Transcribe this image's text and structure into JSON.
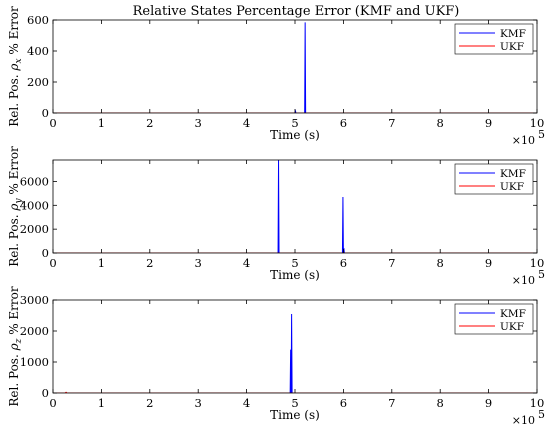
{
  "figure": {
    "title": "Relative States Percentage Error (KMF and UKF)"
  },
  "colors": {
    "kmf": "#0000ff",
    "ukf": "#ff0000",
    "axes": "#000000",
    "background": "#ffffff"
  },
  "chart_data": [
    {
      "type": "line",
      "ylabel_prefix": "Rel. Pos. ",
      "ylabel_sym": "ρ",
      "ylabel_sub": "x",
      "ylabel_suffix": " % Error",
      "xlabel": "Time (s)",
      "xlim": [
        0,
        10
      ],
      "ylim": [
        0,
        600
      ],
      "xticks": [
        "0",
        "1",
        "2",
        "3",
        "4",
        "5",
        "6",
        "7",
        "8",
        "9",
        "10"
      ],
      "yticks": [
        "0",
        "200",
        "400",
        "600"
      ],
      "x_multiplier_base": "×10",
      "x_multiplier_exp": "5",
      "legend_position": "top-right",
      "series": [
        {
          "name": "KMF",
          "color": "#0000ff",
          "x": [
            0,
            5.0,
            5.01,
            5.02,
            5.2,
            5.21,
            5.22,
            10
          ],
          "y": [
            0,
            0,
            12,
            0,
            0,
            585,
            0,
            0
          ]
        },
        {
          "name": "UKF",
          "color": "#ff0000",
          "x": [
            0,
            10
          ],
          "y": [
            0,
            0
          ]
        }
      ]
    },
    {
      "type": "line",
      "ylabel_prefix": "Rel. Pos. ",
      "ylabel_sym": "ρ",
      "ylabel_sub": "y",
      "ylabel_suffix": " % Error",
      "xlabel": "Time (s)",
      "xlim": [
        0,
        10
      ],
      "ylim": [
        0,
        7800
      ],
      "xticks": [
        "0",
        "1",
        "2",
        "3",
        "4",
        "5",
        "6",
        "7",
        "8",
        "9",
        "10"
      ],
      "yticks": [
        "0",
        "2000",
        "4000",
        "6000"
      ],
      "x_multiplier_base": "×10",
      "x_multiplier_exp": "5",
      "legend_position": "top-right",
      "series": [
        {
          "name": "KMF",
          "color": "#0000ff",
          "x": [
            0,
            4.65,
            4.66,
            4.67,
            5.98,
            5.99,
            6.0,
            6.01,
            6.02,
            10
          ],
          "y": [
            0,
            0,
            7800,
            0,
            0,
            4700,
            0,
            400,
            0,
            0
          ]
        },
        {
          "name": "UKF",
          "color": "#ff0000",
          "x": [
            0,
            10
          ],
          "y": [
            0,
            0
          ]
        }
      ]
    },
    {
      "type": "line",
      "ylabel_prefix": "Rel. Pos. ",
      "ylabel_sym": "ρ",
      "ylabel_sub": "z",
      "ylabel_suffix": " % Error",
      "xlabel": "Time (s)",
      "xlim": [
        0,
        10
      ],
      "ylim": [
        0,
        3000
      ],
      "xticks": [
        "0",
        "1",
        "2",
        "3",
        "4",
        "5",
        "6",
        "7",
        "8",
        "9",
        "10"
      ],
      "yticks": [
        "0",
        "1000",
        "2000",
        "3000"
      ],
      "x_multiplier_base": "×10",
      "x_multiplier_exp": "5",
      "legend_position": "top-right",
      "series": [
        {
          "name": "KMF",
          "color": "#0000ff",
          "x": [
            0,
            4.9,
            4.91,
            4.92,
            4.93,
            4.94,
            10
          ],
          "y": [
            0,
            0,
            1400,
            0,
            2550,
            0,
            0
          ]
        },
        {
          "name": "UKF",
          "color": "#ff0000",
          "x": [
            0,
            0.25,
            0.27,
            0.29,
            10
          ],
          "y": [
            0,
            0,
            25,
            0,
            0
          ]
        }
      ]
    }
  ]
}
